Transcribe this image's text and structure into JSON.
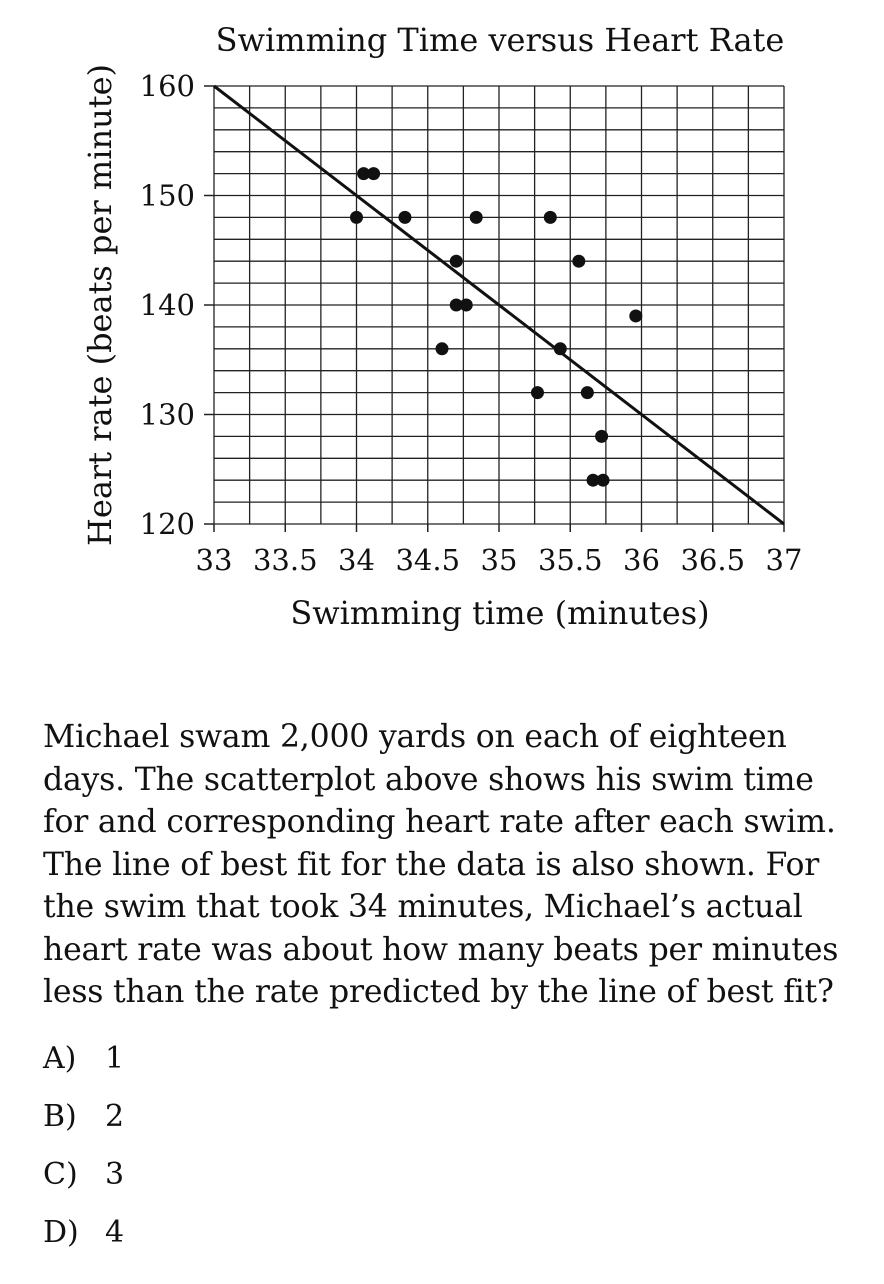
{
  "chart_data": {
    "type": "scatter",
    "title": "Swimming Time versus Heart Rate",
    "xlabel": "Swimming time (minutes)",
    "ylabel": "Heart rate (beats per minute)",
    "xlim": [
      33,
      37
    ],
    "ylim": [
      120,
      160
    ],
    "xticks": [
      "33",
      "33.5",
      "34",
      "34.5",
      "35",
      "35.5",
      "36",
      "36.5",
      "37"
    ],
    "yticks": [
      "120",
      "130",
      "140",
      "150",
      "160"
    ],
    "grid": true,
    "minor_grid_step_x": 0.25,
    "minor_grid_step_y": 2,
    "points": [
      {
        "x": 34.0,
        "y": 148
      },
      {
        "x": 34.05,
        "y": 152
      },
      {
        "x": 34.12,
        "y": 152
      },
      {
        "x": 34.34,
        "y": 148
      },
      {
        "x": 34.6,
        "y": 136
      },
      {
        "x": 34.7,
        "y": 144
      },
      {
        "x": 34.7,
        "y": 140
      },
      {
        "x": 34.77,
        "y": 140
      },
      {
        "x": 34.84,
        "y": 148
      },
      {
        "x": 35.27,
        "y": 132
      },
      {
        "x": 35.36,
        "y": 148
      },
      {
        "x": 35.43,
        "y": 136
      },
      {
        "x": 35.56,
        "y": 144
      },
      {
        "x": 35.62,
        "y": 132
      },
      {
        "x": 35.66,
        "y": 124
      },
      {
        "x": 35.72,
        "y": 128
      },
      {
        "x": 35.73,
        "y": 124
      },
      {
        "x": 35.96,
        "y": 139
      }
    ],
    "fit_line": {
      "x": [
        33,
        37
      ],
      "y": [
        160,
        120
      ]
    }
  },
  "question": {
    "text": "Michael swam 2,000 yards on each of eighteen days. The scatterplot above shows his swim time for and corresponding heart rate after each swim.  The line of best fit for the data is also shown.  For the swim that took 34 minutes, Michael’s actual heart rate was about how many beats per minutes less than the rate predicted by the line of best fit?"
  },
  "choices": [
    {
      "letter": "A)",
      "value": "1"
    },
    {
      "letter": "B)",
      "value": "2"
    },
    {
      "letter": "C)",
      "value": "3"
    },
    {
      "letter": "D)",
      "value": "4"
    }
  ]
}
